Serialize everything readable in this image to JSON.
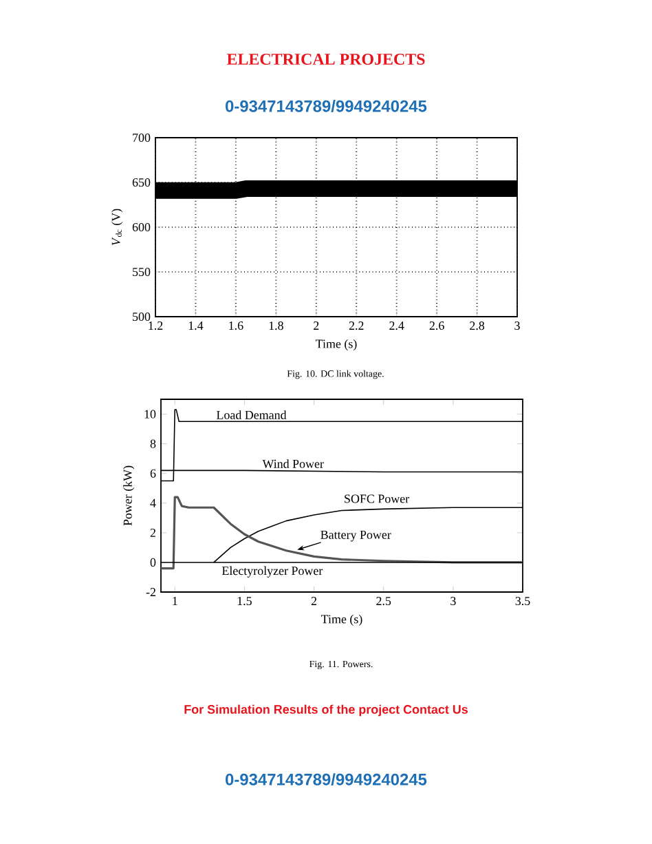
{
  "chart_data": [
    {
      "type": "other",
      "title": "ELECTRICAL PROJECTS",
      "annotations": [
        "0-9347143789/9949240245"
      ]
    },
    {
      "type": "line",
      "xlabel": "Time (s)",
      "ylabel": "*V*$_{dc}$ (V)",
      "annotations": [
        "Fig. 10. DC link voltage."
      ],
      "xlim": [
        1.2,
        3
      ],
      "xticks": [
        1.2,
        1.4,
        1.6,
        1.8,
        2,
        2.2,
        2.4,
        2.6,
        2.8,
        3
      ],
      "ylim": [
        500,
        700
      ],
      "yticks": [
        500,
        550,
        600,
        650,
        700
      ],
      "grid": true,
      "line_style": "solid",
      "series": [
        {
          "color": "#000000",
          "x": [
            1.2,
            1.6,
            1.65,
            3
          ],
          "values": [
            641,
            641,
            643,
            643
          ]
        }
      ]
    },
    {
      "type": "line",
      "xlabel": "Time (s)",
      "ylabel": "Power (kW)",
      "annotations": [
        "Fig. 11. Powers."
      ],
      "xlim": [
        0.9,
        3.5
      ],
      "xticks": [
        1,
        1.5,
        2,
        2.5,
        3,
        3.5
      ],
      "ylim": [
        -2,
        11
      ],
      "yticks": [
        -2,
        0,
        2,
        4,
        6,
        8,
        10
      ],
      "line_style": "solid",
      "series": [
        {
          "name": "Load Demand",
          "color": "#000000",
          "x": [
            0.9,
            0.99,
            1.0,
            1.01,
            1.03,
            3.5
          ],
          "values": [
            5.5,
            5.5,
            10.3,
            10.3,
            9.5,
            9.5
          ]
        },
        {
          "name": "Wind Power",
          "color": "#000000",
          "x": [
            0.9,
            1.0,
            1.5,
            2.5,
            3.5
          ],
          "values": [
            6.2,
            6.2,
            6.2,
            6.1,
            6.1
          ]
        },
        {
          "name": "SOFC Power",
          "color": "#000000",
          "x": [
            1.28,
            1.4,
            1.5,
            1.6,
            1.8,
            2.0,
            2.2,
            2.5,
            3.0,
            3.5
          ],
          "values": [
            0,
            1.0,
            1.6,
            2.1,
            2.8,
            3.2,
            3.5,
            3.6,
            3.7,
            3.7
          ]
        },
        {
          "name": "Battery Power",
          "color": "#555555",
          "x": [
            0.9,
            0.99,
            1.0,
            1.02,
            1.05,
            1.1,
            1.28,
            1.4,
            1.5,
            1.6,
            1.8,
            2.0,
            2.2,
            2.5,
            3.0,
            3.5
          ],
          "values": [
            -0.4,
            -0.4,
            4.4,
            4.4,
            3.8,
            3.7,
            3.7,
            2.6,
            1.9,
            1.4,
            0.8,
            0.4,
            0.2,
            0.1,
            0,
            0
          ]
        },
        {
          "name": "Electyrolyzer Power",
          "color": "#000000",
          "x": [
            0.9,
            3.5
          ],
          "values": [
            0,
            0
          ]
        }
      ]
    },
    {
      "type": "other",
      "annotations": [
        "For Simulation Results of the project Contact Us",
        "0-9347143789/9949240245"
      ]
    }
  ]
}
